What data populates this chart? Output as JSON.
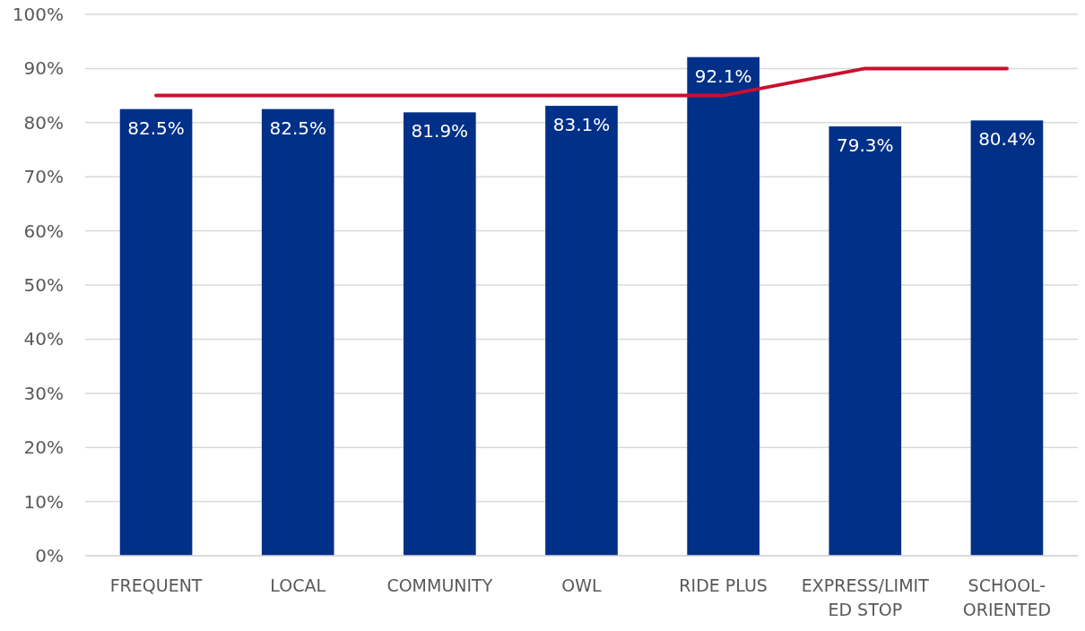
{
  "chart_data": {
    "type": "bar",
    "categories": [
      "FREQUENT",
      "LOCAL",
      "COMMUNITY",
      "OWL",
      "RIDE PLUS",
      "EXPRESS/LIMITED STOP",
      "SCHOOL-ORIENTED"
    ],
    "series": [
      {
        "color": "#003087",
        "values": [
          82.5,
          82.5,
          81.9,
          83.1,
          92.1,
          79.3,
          80.4
        ],
        "value_labels": [
          "82.5%",
          "82.5%",
          "81.9%",
          "83.1%",
          "92.1%",
          "79.3%",
          "80.4%"
        ]
      },
      {
        "type": "line",
        "color": "#c8102e",
        "values": [
          85,
          85,
          85,
          85,
          85,
          90,
          90
        ]
      }
    ],
    "ylim": [
      0,
      100
    ],
    "yticks": [
      {
        "value": 0,
        "label": "0%"
      },
      {
        "value": 10,
        "label": "10%"
      },
      {
        "value": 20,
        "label": "20%"
      },
      {
        "value": 30,
        "label": "30%"
      },
      {
        "value": 40,
        "label": "40%"
      },
      {
        "value": 50,
        "label": "50%"
      },
      {
        "value": 60,
        "label": "60%"
      },
      {
        "value": 70,
        "label": "70%"
      },
      {
        "value": 80,
        "label": "80%"
      },
      {
        "value": 90,
        "label": "90%"
      },
      {
        "value": 100,
        "label": "100%"
      }
    ],
    "grid": "y",
    "marker": "none",
    "line_style": "solid"
  }
}
